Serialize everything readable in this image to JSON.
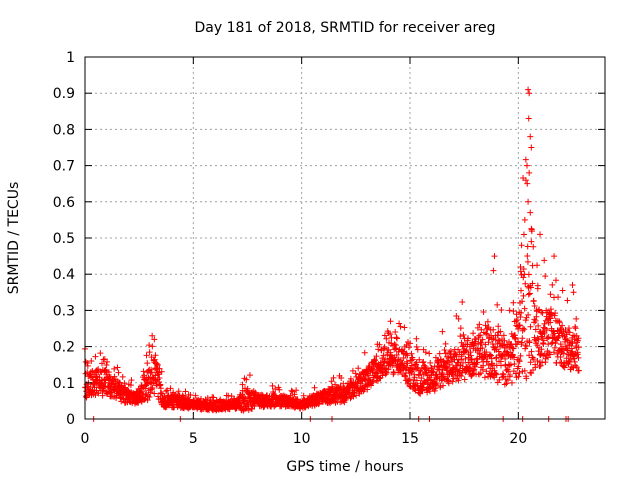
{
  "chart_data": {
    "type": "scatter",
    "title": "Day 181 of 2018, SRMTID for receiver areg",
    "xlabel": "GPS time / hours",
    "ylabel": "SRMTID / TECUs",
    "xlim": [
      0,
      24
    ],
    "ylim": [
      0,
      1
    ],
    "x_ticks": [
      0,
      5,
      10,
      15,
      20
    ],
    "x_tick_labels": [
      "0",
      "5",
      "10",
      "15",
      "20"
    ],
    "y_ticks": [
      0,
      0.1,
      0.2,
      0.3,
      0.4,
      0.5,
      0.6,
      0.7,
      0.8,
      0.9,
      1
    ],
    "y_tick_labels": [
      "0",
      "0.1",
      "0.2",
      "0.3",
      "0.4",
      "0.5",
      "0.6",
      "0.7",
      "0.8",
      "0.9",
      "1"
    ],
    "grid": true,
    "marker": "+",
    "series_color": "#ff0000",
    "point_count": 2300,
    "data_end_hour": 22.8,
    "envelope": [
      {
        "x": 0.0,
        "base": 0.09,
        "spread": 0.06
      },
      {
        "x": 0.5,
        "base": 0.1,
        "spread": 0.06
      },
      {
        "x": 1.0,
        "base": 0.1,
        "spread": 0.06
      },
      {
        "x": 1.5,
        "base": 0.08,
        "spread": 0.05
      },
      {
        "x": 2.0,
        "base": 0.06,
        "spread": 0.03
      },
      {
        "x": 2.5,
        "base": 0.06,
        "spread": 0.03
      },
      {
        "x": 3.0,
        "base": 0.1,
        "spread": 0.08
      },
      {
        "x": 3.3,
        "base": 0.12,
        "spread": 0.09
      },
      {
        "x": 3.6,
        "base": 0.05,
        "spread": 0.03
      },
      {
        "x": 4.0,
        "base": 0.05,
        "spread": 0.03
      },
      {
        "x": 5.0,
        "base": 0.04,
        "spread": 0.02
      },
      {
        "x": 6.0,
        "base": 0.035,
        "spread": 0.02
      },
      {
        "x": 7.0,
        "base": 0.04,
        "spread": 0.02
      },
      {
        "x": 7.5,
        "base": 0.05,
        "spread": 0.05
      },
      {
        "x": 8.0,
        "base": 0.05,
        "spread": 0.03
      },
      {
        "x": 9.0,
        "base": 0.05,
        "spread": 0.025
      },
      {
        "x": 10.0,
        "base": 0.04,
        "spread": 0.02
      },
      {
        "x": 11.0,
        "base": 0.06,
        "spread": 0.03
      },
      {
        "x": 12.0,
        "base": 0.07,
        "spread": 0.04
      },
      {
        "x": 13.0,
        "base": 0.11,
        "spread": 0.05
      },
      {
        "x": 14.0,
        "base": 0.17,
        "spread": 0.07
      },
      {
        "x": 14.5,
        "base": 0.16,
        "spread": 0.07
      },
      {
        "x": 15.0,
        "base": 0.13,
        "spread": 0.07
      },
      {
        "x": 15.5,
        "base": 0.11,
        "spread": 0.07
      },
      {
        "x": 16.0,
        "base": 0.11,
        "spread": 0.06
      },
      {
        "x": 17.0,
        "base": 0.15,
        "spread": 0.09
      },
      {
        "x": 18.0,
        "base": 0.18,
        "spread": 0.1
      },
      {
        "x": 19.0,
        "base": 0.18,
        "spread": 0.13
      },
      {
        "x": 19.5,
        "base": 0.15,
        "spread": 0.1
      },
      {
        "x": 20.0,
        "base": 0.2,
        "spread": 0.15
      },
      {
        "x": 20.4,
        "base": 0.3,
        "spread": 0.35
      },
      {
        "x": 20.8,
        "base": 0.22,
        "spread": 0.14
      },
      {
        "x": 21.5,
        "base": 0.24,
        "spread": 0.12
      },
      {
        "x": 22.0,
        "base": 0.2,
        "spread": 0.1
      },
      {
        "x": 22.8,
        "base": 0.18,
        "spread": 0.08
      }
    ],
    "notable_points": [
      {
        "x": 20.45,
        "y": 0.91
      },
      {
        "x": 20.5,
        "y": 0.9
      },
      {
        "x": 20.48,
        "y": 0.83
      },
      {
        "x": 20.55,
        "y": 0.78
      },
      {
        "x": 20.6,
        "y": 0.75
      },
      {
        "x": 20.4,
        "y": 0.7
      },
      {
        "x": 20.35,
        "y": 0.66
      },
      {
        "x": 20.5,
        "y": 0.68
      },
      {
        "x": 20.45,
        "y": 0.6
      },
      {
        "x": 20.55,
        "y": 0.57
      },
      {
        "x": 20.3,
        "y": 0.55
      },
      {
        "x": 20.15,
        "y": 0.48
      },
      {
        "x": 20.6,
        "y": 0.49
      },
      {
        "x": 21.0,
        "y": 0.51
      },
      {
        "x": 21.65,
        "y": 0.45
      },
      {
        "x": 18.9,
        "y": 0.45
      },
      {
        "x": 18.85,
        "y": 0.41
      },
      {
        "x": 20.1,
        "y": 0.42
      },
      {
        "x": 22.5,
        "y": 0.37
      },
      {
        "x": 22.55,
        "y": 0.35
      },
      {
        "x": 3.1,
        "y": 0.23
      },
      {
        "x": 3.2,
        "y": 0.22
      },
      {
        "x": 14.1,
        "y": 0.27
      },
      {
        "x": 19.6,
        "y": 0.3
      },
      {
        "x": 19.8,
        "y": 0.17
      },
      {
        "x": 20.9,
        "y": 0.36
      }
    ],
    "zero_points_x": [
      0.4,
      4.4,
      10.4,
      11.4,
      15.4,
      15.9,
      19.3,
      20.2,
      21.4,
      22.2,
      22.3
    ]
  }
}
